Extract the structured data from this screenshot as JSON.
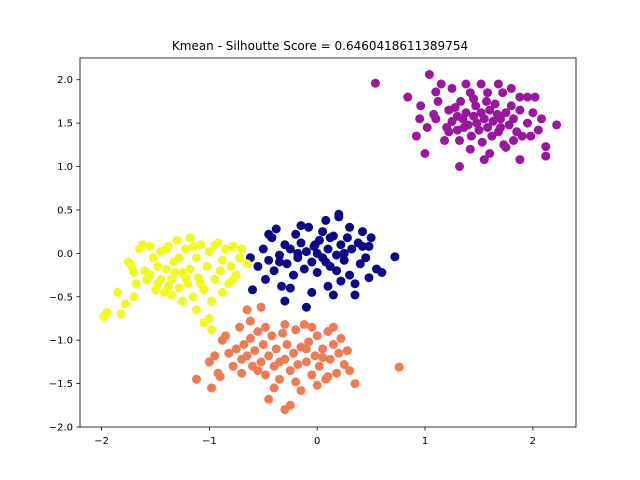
{
  "chart_data": {
    "type": "scatter",
    "title": "Kmean - Silhoutte Score = 0.6460418611389754",
    "xlabel": "",
    "ylabel": "",
    "xlim": [
      -2.2,
      2.4
    ],
    "ylim": [
      -2.0,
      2.25
    ],
    "xticks": [
      {
        "value": -2,
        "label": "−2"
      },
      {
        "value": -1,
        "label": "−1"
      },
      {
        "value": 0,
        "label": "0"
      },
      {
        "value": 1,
        "label": "1"
      },
      {
        "value": 2,
        "label": "2"
      }
    ],
    "yticks": [
      {
        "value": -2.0,
        "label": "−2.0"
      },
      {
        "value": -1.5,
        "label": "−1.5"
      },
      {
        "value": -1.0,
        "label": "−1.0"
      },
      {
        "value": -0.5,
        "label": "−0.5"
      },
      {
        "value": 0.0,
        "label": "0.0"
      },
      {
        "value": 0.5,
        "label": "0.5"
      },
      {
        "value": 1.0,
        "label": "1.0"
      },
      {
        "value": 1.5,
        "label": "1.5"
      },
      {
        "value": 2.0,
        "label": "2.0"
      }
    ],
    "grid": false,
    "legend": "none",
    "series": [
      {
        "color": "#9a169e",
        "points": [
          [
            0.54,
            1.96
          ],
          [
            0.84,
            1.8
          ],
          [
            0.96,
            1.7
          ],
          [
            1.04,
            2.06
          ],
          [
            1.1,
            1.86
          ],
          [
            1.1,
            1.55
          ],
          [
            1.15,
            1.95
          ],
          [
            1.2,
            1.45
          ],
          [
            1.22,
            1.65
          ],
          [
            1.25,
            1.52
          ],
          [
            1.28,
            1.68
          ],
          [
            1.3,
            1.42
          ],
          [
            1.32,
            1.3
          ],
          [
            1.33,
            1.75
          ],
          [
            1.35,
            1.55
          ],
          [
            1.38,
            1.62
          ],
          [
            1.4,
            1.48
          ],
          [
            1.42,
            1.85
          ],
          [
            1.43,
            1.35
          ],
          [
            1.45,
            1.58
          ],
          [
            1.47,
            1.7
          ],
          [
            1.48,
            1.5
          ],
          [
            1.5,
            1.42
          ],
          [
            1.52,
            1.62
          ],
          [
            1.53,
            1.28
          ],
          [
            1.55,
            1.55
          ],
          [
            1.57,
            1.75
          ],
          [
            1.58,
            1.45
          ],
          [
            1.6,
            1.65
          ],
          [
            1.62,
            1.35
          ],
          [
            1.63,
            1.52
          ],
          [
            1.65,
            1.72
          ],
          [
            1.67,
            1.6
          ],
          [
            1.68,
            1.4
          ],
          [
            1.7,
            1.55
          ],
          [
            1.72,
            1.85
          ],
          [
            1.73,
            1.25
          ],
          [
            1.75,
            1.62
          ],
          [
            1.78,
            1.48
          ],
          [
            1.8,
            1.7
          ],
          [
            1.82,
            1.55
          ],
          [
            1.85,
            1.4
          ],
          [
            1.88,
            1.65
          ],
          [
            1.9,
            1.35
          ],
          [
            1.95,
            1.5
          ],
          [
            2.0,
            1.62
          ],
          [
            2.05,
            1.42
          ],
          [
            2.12,
            1.12
          ],
          [
            2.12,
            1.23
          ],
          [
            2.22,
            1.48
          ],
          [
            1.32,
            1.0
          ],
          [
            1.42,
            1.2
          ],
          [
            1.55,
            1.08
          ],
          [
            1.6,
            1.15
          ],
          [
            1.75,
            1.22
          ],
          [
            1.88,
            1.08
          ],
          [
            1.0,
            1.15
          ],
          [
            0.95,
            1.55
          ],
          [
            0.92,
            1.35
          ],
          [
            1.02,
            1.45
          ],
          [
            1.08,
            1.6
          ],
          [
            1.12,
            1.75
          ],
          [
            1.18,
            1.3
          ],
          [
            1.25,
            1.9
          ],
          [
            1.38,
            1.95
          ],
          [
            1.52,
            1.95
          ],
          [
            1.68,
            1.95
          ],
          [
            1.8,
            1.9
          ],
          [
            1.88,
            1.8
          ],
          [
            1.95,
            1.8
          ],
          [
            2.02,
            1.8
          ],
          [
            1.98,
            1.35
          ],
          [
            2.08,
            1.55
          ],
          [
            1.82,
            1.3
          ],
          [
            1.7,
            1.45
          ],
          [
            1.58,
            1.85
          ],
          [
            1.45,
            1.78
          ],
          [
            1.36,
            1.45
          ],
          [
            1.3,
            1.58
          ],
          [
            1.22,
            1.4
          ]
        ]
      },
      {
        "color": "#0d0887",
        "points": [
          [
            -0.62,
            -0.05
          ],
          [
            -0.6,
            -0.42
          ],
          [
            -0.55,
            -0.15
          ],
          [
            -0.5,
            0.05
          ],
          [
            -0.48,
            -0.3
          ],
          [
            -0.45,
            -0.08
          ],
          [
            -0.42,
            0.18
          ],
          [
            -0.4,
            -0.2
          ],
          [
            -0.38,
            0.28
          ],
          [
            -0.35,
            -0.02
          ],
          [
            -0.33,
            -0.38
          ],
          [
            -0.3,
            0.1
          ],
          [
            -0.28,
            -0.12
          ],
          [
            -0.25,
            0.05
          ],
          [
            -0.22,
            -0.25
          ],
          [
            -0.2,
            0.22
          ],
          [
            -0.18,
            -0.05
          ],
          [
            -0.15,
            0.12
          ],
          [
            -0.12,
            -0.18
          ],
          [
            -0.1,
            0.02
          ],
          [
            -0.08,
            0.3
          ],
          [
            -0.05,
            -0.1
          ],
          [
            -0.03,
            0.08
          ],
          [
            0.0,
            -0.22
          ],
          [
            0.02,
            0.15
          ],
          [
            0.05,
            -0.05
          ],
          [
            0.08,
            0.38
          ],
          [
            0.1,
            0.05
          ],
          [
            0.12,
            -0.15
          ],
          [
            0.15,
            0.2
          ],
          [
            0.18,
            -0.02
          ],
          [
            0.2,
            0.42
          ],
          [
            0.22,
            0.1
          ],
          [
            0.25,
            -0.08
          ],
          [
            0.28,
            0.18
          ],
          [
            0.3,
            -0.25
          ],
          [
            0.32,
            0.05
          ],
          [
            0.35,
            -0.35
          ],
          [
            0.38,
            0.12
          ],
          [
            0.4,
            -0.12
          ],
          [
            0.42,
            0.25
          ],
          [
            0.45,
            -0.05
          ],
          [
            0.48,
            0.08
          ],
          [
            0.5,
            0.18
          ],
          [
            0.55,
            -0.18
          ],
          [
            0.6,
            -0.22
          ],
          [
            0.72,
            -0.04
          ],
          [
            -0.05,
            -0.45
          ],
          [
            0.1,
            -0.38
          ],
          [
            0.22,
            -0.32
          ],
          [
            0.35,
            -0.48
          ],
          [
            -0.3,
            -0.55
          ],
          [
            -0.1,
            -0.62
          ],
          [
            0.15,
            -0.48
          ],
          [
            0.2,
            0.45
          ],
          [
            0.05,
            0.25
          ],
          [
            -0.15,
            0.32
          ],
          [
            0.3,
            0.3
          ],
          [
            0.42,
            0.08
          ],
          [
            -0.45,
            0.22
          ],
          [
            -0.25,
            -0.4
          ],
          [
            0.0,
            0.0
          ],
          [
            0.08,
            -0.1
          ],
          [
            -0.18,
            0.0
          ],
          [
            0.25,
            0.0
          ],
          [
            0.12,
            0.18
          ],
          [
            -0.02,
            0.1
          ],
          [
            0.18,
            -0.2
          ],
          [
            -0.35,
            -0.1
          ],
          [
            0.48,
            -0.28
          ]
        ]
      },
      {
        "color": "#f0f921",
        "points": [
          [
            -1.98,
            -0.73
          ],
          [
            -1.95,
            -0.68
          ],
          [
            -1.85,
            -0.45
          ],
          [
            -1.82,
            -0.7
          ],
          [
            -1.78,
            -0.58
          ],
          [
            -1.75,
            -0.1
          ],
          [
            -1.72,
            -0.15
          ],
          [
            -1.7,
            -0.22
          ],
          [
            -1.65,
            0.05
          ],
          [
            -1.62,
            0.1
          ],
          [
            -1.58,
            -0.3
          ],
          [
            -1.55,
            -0.25
          ],
          [
            -1.52,
            -0.05
          ],
          [
            -1.5,
            -0.42
          ],
          [
            -1.48,
            -0.35
          ],
          [
            -1.45,
            0.02
          ],
          [
            -1.42,
            -0.45
          ],
          [
            -1.4,
            -0.18
          ],
          [
            -1.38,
            0.08
          ],
          [
            -1.35,
            -0.3
          ],
          [
            -1.33,
            -0.1
          ],
          [
            -1.3,
            0.15
          ],
          [
            -1.28,
            -0.4
          ],
          [
            -1.25,
            -0.22
          ],
          [
            -1.22,
            0.05
          ],
          [
            -1.2,
            -0.35
          ],
          [
            -1.18,
            0.18
          ],
          [
            -1.15,
            -0.5
          ],
          [
            -1.12,
            -0.05
          ],
          [
            -1.1,
            -0.28
          ],
          [
            -1.08,
            0.1
          ],
          [
            -1.05,
            -0.42
          ],
          [
            -1.02,
            -0.15
          ],
          [
            -1.0,
            0.02
          ],
          [
            -0.98,
            -0.55
          ],
          [
            -0.95,
            -0.3
          ],
          [
            -0.92,
            0.12
          ],
          [
            -0.9,
            -0.2
          ],
          [
            -0.88,
            -0.08
          ],
          [
            -0.85,
            0.05
          ],
          [
            -0.82,
            -0.35
          ],
          [
            -0.8,
            -0.15
          ],
          [
            -0.78,
            0.08
          ],
          [
            -0.75,
            -0.25
          ],
          [
            -0.72,
            -0.05
          ],
          [
            -0.7,
            0.05
          ],
          [
            -0.65,
            -0.12
          ],
          [
            -1.0,
            -0.75
          ],
          [
            -1.05,
            -0.8
          ],
          [
            -0.98,
            -0.88
          ],
          [
            -1.12,
            -0.65
          ],
          [
            -1.15,
            0.08
          ],
          [
            -1.25,
            -0.55
          ],
          [
            -1.35,
            -0.48
          ],
          [
            -1.4,
            0.05
          ],
          [
            -1.55,
            0.08
          ],
          [
            -1.6,
            -0.2
          ],
          [
            -1.68,
            -0.35
          ],
          [
            -1.7,
            -0.5
          ],
          [
            -1.48,
            -0.15
          ],
          [
            -1.28,
            -0.05
          ],
          [
            -1.18,
            -0.18
          ],
          [
            -1.08,
            -0.35
          ],
          [
            -0.95,
            0.1
          ],
          [
            -0.88,
            -0.45
          ],
          [
            -0.78,
            -0.3
          ],
          [
            -1.22,
            -0.28
          ],
          [
            -1.32,
            -0.22
          ],
          [
            -1.45,
            -0.3
          ],
          [
            -1.38,
            -0.38
          ]
        ]
      },
      {
        "color": "#ef7a54",
        "points": [
          [
            -1.12,
            -1.45
          ],
          [
            -1.0,
            -1.25
          ],
          [
            -0.98,
            -1.55
          ],
          [
            -0.92,
            -1.38
          ],
          [
            -0.9,
            -1.42
          ],
          [
            -0.85,
            -0.95
          ],
          [
            -0.82,
            -1.15
          ],
          [
            -0.78,
            -1.3
          ],
          [
            -0.75,
            -1.1
          ],
          [
            -0.72,
            -0.85
          ],
          [
            -0.7,
            -1.22
          ],
          [
            -0.68,
            -1.05
          ],
          [
            -0.65,
            -1.18
          ],
          [
            -0.62,
            -0.98
          ],
          [
            -0.6,
            -1.3
          ],
          [
            -0.58,
            -1.12
          ],
          [
            -0.55,
            -0.9
          ],
          [
            -0.52,
            -1.25
          ],
          [
            -0.5,
            -1.05
          ],
          [
            -0.48,
            -1.4
          ],
          [
            -0.45,
            -1.18
          ],
          [
            -0.42,
            -0.95
          ],
          [
            -0.4,
            -1.3
          ],
          [
            -0.38,
            -1.1
          ],
          [
            -0.35,
            -1.45
          ],
          [
            -0.32,
            -0.92
          ],
          [
            -0.3,
            -1.22
          ],
          [
            -0.28,
            -1.05
          ],
          [
            -0.25,
            -1.35
          ],
          [
            -0.22,
            -1.15
          ],
          [
            -0.2,
            -0.88
          ],
          [
            -0.18,
            -1.28
          ],
          [
            -0.15,
            -1.08
          ],
          [
            -0.12,
            -0.82
          ],
          [
            -0.1,
            -1.25
          ],
          [
            -0.08,
            -1.02
          ],
          [
            -0.05,
            -1.4
          ],
          [
            -0.02,
            -1.18
          ],
          [
            0.0,
            -0.95
          ],
          [
            0.02,
            -1.3
          ],
          [
            0.05,
            -1.1
          ],
          [
            0.08,
            -1.45
          ],
          [
            0.1,
            -0.9
          ],
          [
            0.12,
            -1.22
          ],
          [
            0.15,
            -1.05
          ],
          [
            0.18,
            -1.38
          ],
          [
            0.2,
            -1.15
          ],
          [
            0.22,
            -0.98
          ],
          [
            0.25,
            -1.28
          ],
          [
            0.28,
            -1.12
          ],
          [
            0.3,
            -1.35
          ],
          [
            0.35,
            -1.5
          ],
          [
            0.76,
            -1.31
          ],
          [
            -0.45,
            -1.68
          ],
          [
            -0.3,
            -1.8
          ],
          [
            -0.25,
            -1.75
          ],
          [
            -0.4,
            -1.55
          ],
          [
            -0.15,
            -1.58
          ],
          [
            0.0,
            -1.52
          ],
          [
            0.1,
            -1.42
          ],
          [
            -0.88,
            -1.0
          ],
          [
            -0.95,
            -1.18
          ],
          [
            -0.62,
            -0.78
          ],
          [
            -0.52,
            -0.62
          ],
          [
            -0.65,
            -0.65
          ],
          [
            -0.3,
            -0.82
          ],
          [
            -0.05,
            -0.85
          ],
          [
            0.15,
            -0.85
          ],
          [
            -0.2,
            -1.48
          ],
          [
            -0.35,
            -1.25
          ],
          [
            -0.55,
            -1.35
          ],
          [
            -0.7,
            -1.38
          ],
          [
            -0.48,
            -0.85
          ],
          [
            0.05,
            -1.2
          ],
          [
            -0.1,
            -1.1
          ]
        ]
      }
    ]
  }
}
